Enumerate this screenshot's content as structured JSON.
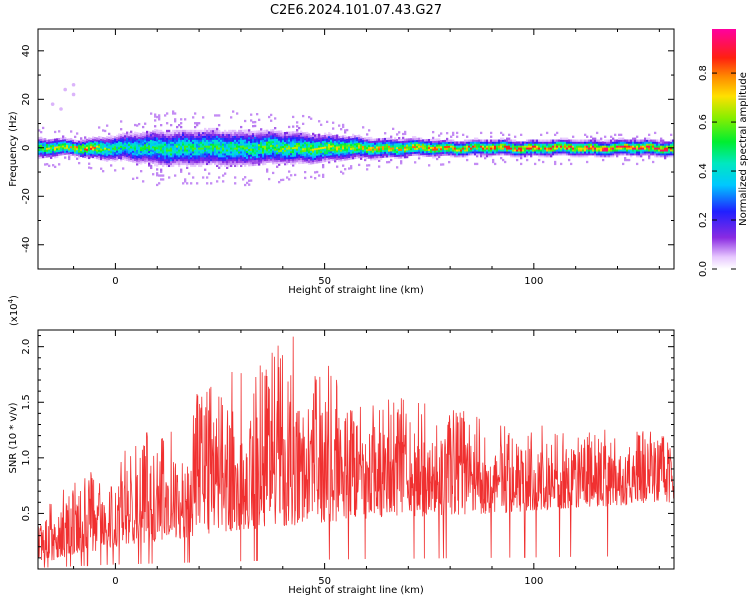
{
  "title": "C2E6.2024.101.07.43.G27",
  "chart_data": [
    {
      "type": "heatmap",
      "xlabel": "Height of straight line (km)",
      "ylabel": "Frequency (Hz)",
      "xlim": [
        -18.5,
        133.5
      ],
      "ylim": [
        -50,
        49
      ],
      "xticks": [
        "0",
        "50",
        "100"
      ],
      "xtick_values": [
        0,
        50,
        100
      ],
      "yticks": [
        "40",
        "20",
        "0",
        "-20",
        "-40"
      ],
      "ytick_values": [
        40,
        20,
        0,
        -20,
        -40
      ],
      "colorbar": {
        "label": "Normalized spectral amplitude",
        "ticks": [
          "0.0",
          "0.2",
          "0.4",
          "0.6",
          "0.8"
        ],
        "tick_values": [
          0.0,
          0.2,
          0.4,
          0.6,
          0.8
        ],
        "range": [
          0,
          0.98
        ]
      },
      "band": {
        "center_hz": 0,
        "halfwidth_hz": [
          [
            -18.5,
            4
          ],
          [
            -10,
            3
          ],
          [
            0,
            5
          ],
          [
            10,
            7
          ],
          [
            30,
            7
          ],
          [
            45,
            6
          ],
          [
            60,
            4
          ],
          [
            80,
            3
          ],
          [
            100,
            3
          ],
          [
            133.5,
            3
          ]
        ],
        "peak_amplitude": [
          [
            -18.5,
            0.6
          ],
          [
            -6,
            0.85
          ],
          [
            0,
            0.5
          ],
          [
            30,
            0.55
          ],
          [
            55,
            0.7
          ],
          [
            75,
            0.8
          ],
          [
            100,
            0.85
          ],
          [
            115,
            0.9
          ],
          [
            133.5,
            0.9
          ]
        ]
      }
    },
    {
      "type": "line",
      "xlabel": "Height of straight line (km)",
      "ylabel": "SNR (10 * v/v)",
      "multiplier": "(x10",
      "multiplier_exp": "4",
      "multiplier_close": ")",
      "xlim": [
        -18.5,
        133.5
      ],
      "ylim": [
        0,
        2.15
      ],
      "xticks": [
        "0",
        "50",
        "100"
      ],
      "xtick_values": [
        0,
        50,
        100
      ],
      "yticks": [
        "0.5",
        "1.0",
        "1.5",
        "2.0"
      ],
      "ytick_values": [
        0.5,
        1.0,
        1.5,
        2.0
      ],
      "color": "#f03030",
      "envelope": [
        [
          -18.5,
          0.55
        ],
        [
          -10,
          0.8
        ],
        [
          0,
          1.1
        ],
        [
          10,
          1.3
        ],
        [
          20,
          1.6
        ],
        [
          30,
          1.9
        ],
        [
          45,
          2.15
        ],
        [
          55,
          1.7
        ],
        [
          70,
          1.6
        ],
        [
          90,
          1.35
        ],
        [
          110,
          1.25
        ],
        [
          133.5,
          1.3
        ]
      ],
      "floor": [
        [
          -18.5,
          0.05
        ],
        [
          0,
          0.2
        ],
        [
          30,
          0.35
        ],
        [
          60,
          0.45
        ],
        [
          90,
          0.5
        ],
        [
          133.5,
          0.6
        ]
      ]
    }
  ]
}
